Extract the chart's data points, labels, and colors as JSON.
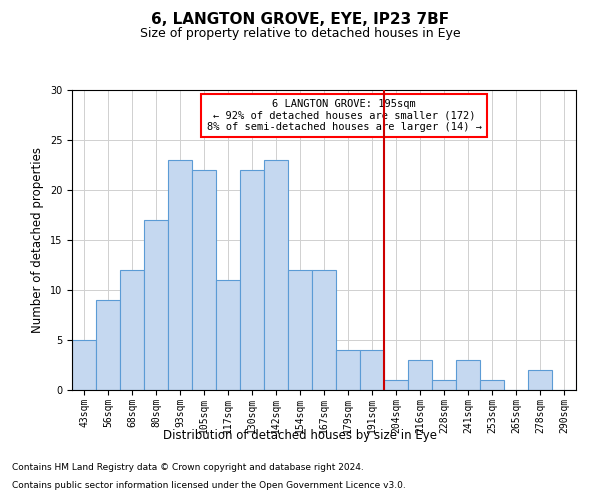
{
  "title1": "6, LANGTON GROVE, EYE, IP23 7BF",
  "title2": "Size of property relative to detached houses in Eye",
  "xlabel": "Distribution of detached houses by size in Eye",
  "ylabel": "Number of detached properties",
  "categories": [
    "43sqm",
    "56sqm",
    "68sqm",
    "80sqm",
    "93sqm",
    "105sqm",
    "117sqm",
    "130sqm",
    "142sqm",
    "154sqm",
    "167sqm",
    "179sqm",
    "191sqm",
    "204sqm",
    "216sqm",
    "228sqm",
    "241sqm",
    "253sqm",
    "265sqm",
    "278sqm",
    "290sqm"
  ],
  "values": [
    5,
    9,
    12,
    17,
    23,
    22,
    11,
    22,
    23,
    12,
    12,
    4,
    4,
    1,
    3,
    1,
    3,
    1,
    0,
    2,
    0
  ],
  "bar_color": "#c5d8f0",
  "bar_edge_color": "#5b9bd5",
  "grid_color": "#d0d0d0",
  "vline_x": 12.5,
  "vline_color": "#cc0000",
  "annotation_text": "6 LANGTON GROVE: 195sqm\n← 92% of detached houses are smaller (172)\n8% of semi-detached houses are larger (14) →",
  "annotation_box_color": "red",
  "ylim": [
    0,
    30
  ],
  "yticks": [
    0,
    5,
    10,
    15,
    20,
    25,
    30
  ],
  "footer1": "Contains HM Land Registry data © Crown copyright and database right 2024.",
  "footer2": "Contains public sector information licensed under the Open Government Licence v3.0.",
  "title1_fontsize": 11,
  "title2_fontsize": 9,
  "xlabel_fontsize": 8.5,
  "ylabel_fontsize": 8.5,
  "tick_fontsize": 7,
  "footer_fontsize": 6.5,
  "annot_fontsize": 7.5
}
